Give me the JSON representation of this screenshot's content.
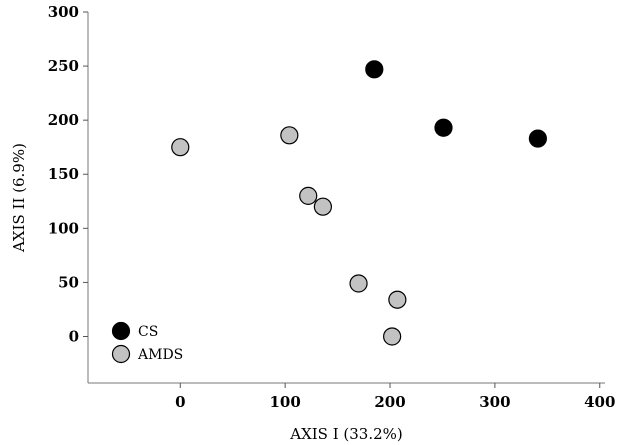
{
  "chart_data": {
    "type": "scatter",
    "title": "",
    "xlabel": "AXIS I (33.2%)",
    "ylabel": "AXIS II (6.9%)",
    "xlim": [
      -88,
      405
    ],
    "ylim": [
      -43,
      300
    ],
    "xticks": [
      0,
      100,
      200,
      300,
      400
    ],
    "yticks": [
      0,
      50,
      100,
      150,
      200,
      250,
      300
    ],
    "grid": false,
    "legend_position": "bottom-left",
    "series": [
      {
        "name": "CS",
        "color": "#000000",
        "points": [
          {
            "x": 185,
            "y": 247
          },
          {
            "x": 251,
            "y": 193
          },
          {
            "x": 341,
            "y": 183
          }
        ]
      },
      {
        "name": "AMDS",
        "color": "#c2c2c2",
        "points": [
          {
            "x": 0,
            "y": 175
          },
          {
            "x": 104,
            "y": 186
          },
          {
            "x": 122,
            "y": 130
          },
          {
            "x": 136,
            "y": 120
          },
          {
            "x": 170,
            "y": 49
          },
          {
            "x": 207,
            "y": 34
          },
          {
            "x": 202,
            "y": 0
          }
        ]
      }
    ]
  }
}
